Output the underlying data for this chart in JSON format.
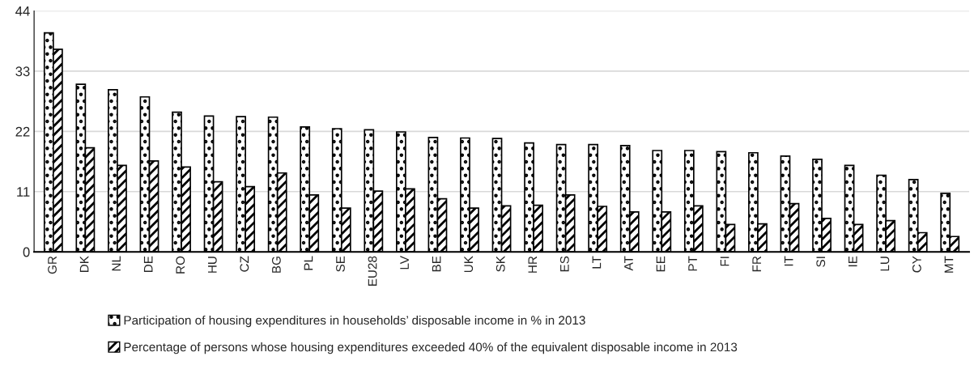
{
  "chart_data": {
    "type": "bar",
    "categories": [
      "GR",
      "DK",
      "NL",
      "DE",
      "RO",
      "HU",
      "CZ",
      "BG",
      "PL",
      "SE",
      "EU28",
      "LV",
      "BE",
      "UK",
      "SK",
      "HR",
      "ES",
      "LT",
      "AT",
      "EE",
      "PT",
      "FI",
      "FR",
      "IT",
      "SI",
      "IE",
      "LU",
      "CY",
      "MT"
    ],
    "series": [
      {
        "name": "Participation of housing expenditures in households’ disposable income in % in 2013",
        "color": "#000000",
        "values": [
          40.0,
          30.6,
          29.6,
          28.3,
          25.5,
          24.8,
          24.7,
          24.6,
          22.8,
          22.5,
          22.3,
          21.9,
          20.9,
          20.8,
          20.7,
          19.9,
          19.6,
          19.6,
          19.4,
          18.5,
          18.5,
          18.3,
          18.1,
          17.5,
          16.9,
          15.8,
          14.0,
          13.2,
          10.7
        ]
      },
      {
        "name": "Percentage of persons whose housing expenditures exceeded 40% of the equivalent disposable income in 2013",
        "color": "#000000",
        "values": [
          37.0,
          19.0,
          15.8,
          16.6,
          15.5,
          12.8,
          11.9,
          14.4,
          10.4,
          8.0,
          11.1,
          11.5,
          9.7,
          8.0,
          8.4,
          8.5,
          10.4,
          8.3,
          7.3,
          7.3,
          8.4,
          5.0,
          5.1,
          8.8,
          6.1,
          5.0,
          5.7,
          3.5,
          2.8
        ]
      }
    ],
    "ylim": [
      0,
      44
    ],
    "yticks": [
      0,
      11,
      22,
      33,
      44
    ],
    "grid": "y",
    "legend": "bottom"
  }
}
